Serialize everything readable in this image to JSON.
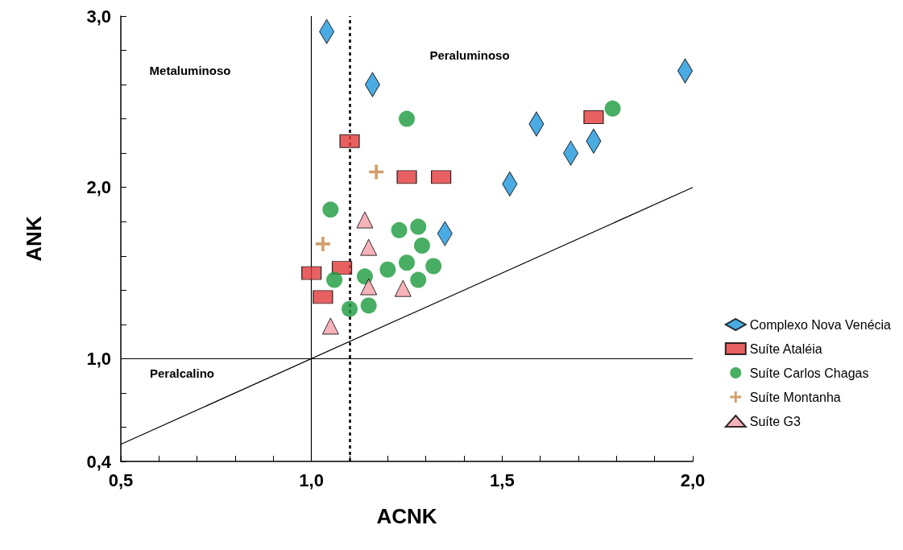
{
  "chart_data": {
    "type": "scatter",
    "xlabel": "ACNK",
    "ylabel": "ANK",
    "xlim": [
      0.5,
      2.0
    ],
    "ylim": [
      0.4,
      3.0
    ],
    "xticks": [
      {
        "value": 0.5,
        "label": "0,5"
      },
      {
        "value": 0.6,
        "label": null
      },
      {
        "value": 0.7,
        "label": null
      },
      {
        "value": 0.8,
        "label": null
      },
      {
        "value": 0.9,
        "label": null
      },
      {
        "value": 1.0,
        "label": "1,0"
      },
      {
        "value": 1.1,
        "label": null
      },
      {
        "value": 1.2,
        "label": null
      },
      {
        "value": 1.3,
        "label": null
      },
      {
        "value": 1.4,
        "label": null
      },
      {
        "value": 1.5,
        "label": "1,5"
      },
      {
        "value": 1.6,
        "label": null
      },
      {
        "value": 1.7,
        "label": null
      },
      {
        "value": 1.8,
        "label": null
      },
      {
        "value": 1.9,
        "label": null
      },
      {
        "value": 2.0,
        "label": "2,0"
      }
    ],
    "yticks": [
      {
        "value": 0.4,
        "label": "0,4"
      },
      {
        "value": 0.6,
        "label": null
      },
      {
        "value": 0.8,
        "label": null
      },
      {
        "value": 1.0,
        "label": "1,0"
      },
      {
        "value": 1.2,
        "label": null
      },
      {
        "value": 1.4,
        "label": null
      },
      {
        "value": 1.6,
        "label": null
      },
      {
        "value": 1.8,
        "label": null
      },
      {
        "value": 2.0,
        "label": "2,0"
      },
      {
        "value": 2.2,
        "label": null
      },
      {
        "value": 2.4,
        "label": null
      },
      {
        "value": 2.6,
        "label": null
      },
      {
        "value": 2.8,
        "label": null
      },
      {
        "value": 3.0,
        "label": "3,0"
      }
    ],
    "grid": false,
    "legend": "right",
    "annotations": [
      "Metaluminoso",
      "Peraluminoso",
      "Peralcalino"
    ],
    "ref_lines": [
      {
        "axis": "x",
        "value": 1.0,
        "label": null,
        "color": "#000000",
        "line_style": "solid"
      },
      {
        "axis": "y",
        "value": 1.0,
        "label": null,
        "color": "#000000",
        "line_style": "solid"
      },
      {
        "axis": "x",
        "value": 1.1,
        "label": null,
        "color": "#000000",
        "line_style": "dashed"
      }
    ],
    "series": [
      {
        "name": "Complexo Nova Venécia",
        "color": "#1e96dc",
        "marker": "diamond",
        "x": [
          1.04,
          1.16,
          1.35,
          1.52,
          1.59,
          1.68,
          1.74,
          1.98
        ],
        "values": [
          2.91,
          2.6,
          1.73,
          2.02,
          2.37,
          2.2,
          2.27,
          2.68
        ]
      },
      {
        "name": "Suíte Ataléia",
        "color": "#e23a3a",
        "marker": "square",
        "x": [
          1.1,
          1.25,
          1.34,
          1.74,
          1.0,
          1.08,
          1.03
        ],
        "values": [
          2.27,
          2.06,
          2.06,
          2.41,
          1.5,
          1.53,
          1.36
        ]
      },
      {
        "name": "Suíte Carlos Chagas",
        "color": "#1a9a3c",
        "marker": "circle",
        "x": [
          1.25,
          1.79,
          1.05,
          1.23,
          1.28,
          1.29,
          1.25,
          1.32,
          1.2,
          1.14,
          1.06,
          1.28,
          1.1,
          1.15
        ],
        "values": [
          2.4,
          2.46,
          1.87,
          1.75,
          1.77,
          1.66,
          1.56,
          1.54,
          1.52,
          1.48,
          1.46,
          1.46,
          1.29,
          1.31
        ]
      },
      {
        "name": "Suíte Montanha",
        "color": "#c8864a",
        "marker": "cross",
        "x": [
          1.17,
          1.03
        ],
        "values": [
          2.09,
          1.67
        ]
      },
      {
        "name": "Suíte G3",
        "color": "#f4a0a8",
        "marker": "triangle",
        "x": [
          1.14,
          1.15,
          1.15,
          1.24,
          1.05
        ],
        "values": [
          1.81,
          1.65,
          1.42,
          1.41,
          1.19
        ]
      },
      {
        "type": "line",
        "color": "#000000",
        "marker": "none",
        "line_style": "solid",
        "x": [
          0.5,
          2.0
        ],
        "values": [
          0.5,
          2.0
        ]
      }
    ]
  }
}
